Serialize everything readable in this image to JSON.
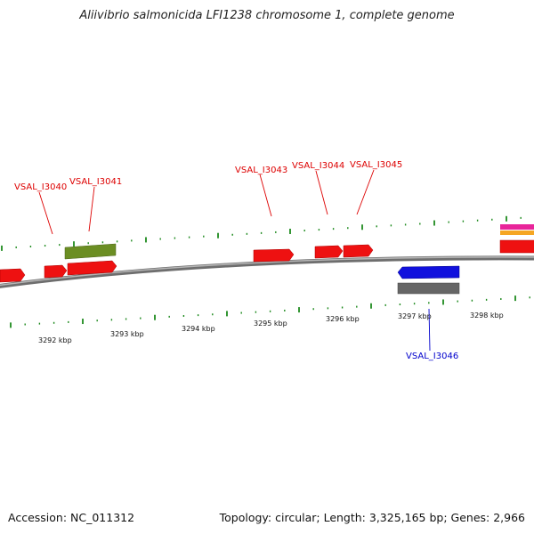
{
  "title": "Aliivibrio salmonicida LFI1238 chromosome 1, complete genome",
  "footer": {
    "accession": "Accession: NC_011312",
    "stats": "Topology: circular; Length: 3,325,165 bp; Genes: 2,966"
  },
  "colors": {
    "backbone": "#7a7a7a",
    "tick": "#1e8a1e",
    "forward_label": "#dd0000",
    "reverse_label": "#0000cc",
    "red_gene": "#ee1111",
    "olive_gene": "#6b8e23",
    "blue_gene": "#1111dd",
    "gray_gene": "#666666"
  },
  "tick_labels": [
    "3292 kbp",
    "3293 kbp",
    "3294 kbp",
    "3295 kbp",
    "3296 kbp",
    "3297 kbp",
    "3298 kbp"
  ],
  "gene_labels": [
    {
      "text": "VSAL_I3040",
      "strand": "forward"
    },
    {
      "text": "VSAL_I3041",
      "strand": "forward"
    },
    {
      "text": "VSAL_I3043",
      "strand": "forward"
    },
    {
      "text": "VSAL_I3044",
      "strand": "forward"
    },
    {
      "text": "VSAL_I3045",
      "strand": "forward"
    },
    {
      "text": "VSAL_I3046",
      "strand": "reverse"
    }
  ]
}
